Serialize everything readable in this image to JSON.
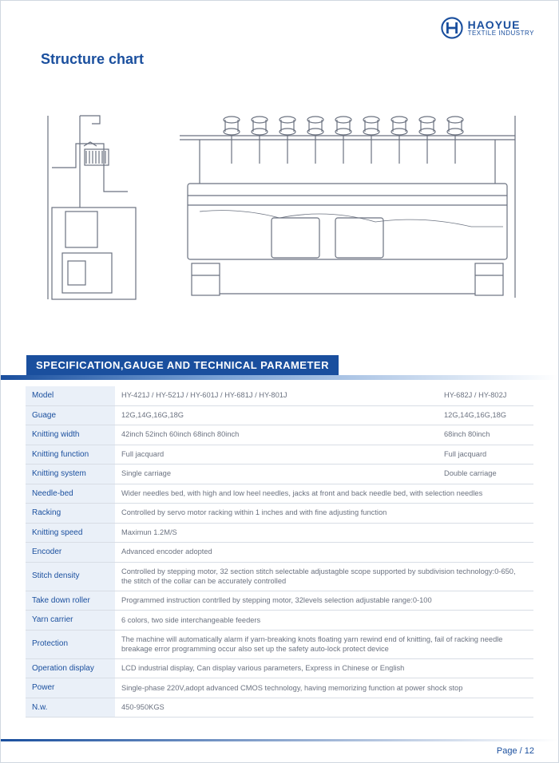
{
  "brand": {
    "name": "HAOYUE",
    "subline": "TEXTILE INDUSTRY"
  },
  "title": "Structure chart",
  "section_header": "SPECIFICATION,GAUGE AND TECHNICAL PARAMETER",
  "footer": {
    "label": "Page /",
    "num": "12"
  },
  "colors": {
    "brand": "#1a4f9e",
    "stroke": "#6b7280",
    "label_bg": "#eaf0f8",
    "border": "#d8dde5"
  },
  "specs": {
    "rows": [
      {
        "label": "Model",
        "c2": "HY-421J / HY-521J / HY-601J / HY-681J / HY-801J",
        "c3": "HY-682J / HY-802J"
      },
      {
        "label": "Guage",
        "c2": "12G,14G,16G,18G",
        "c3": "12G,14G,16G,18G"
      },
      {
        "label": "Knitting width",
        "c2": "42inch  52inch  60inch  68inch  80inch",
        "c3": "68inch   80inch"
      },
      {
        "label": "Knitting function",
        "c2": "Full jacquard",
        "c3": "Full jacquard"
      },
      {
        "label": "Knitting system",
        "c2": "Single carriage",
        "c3": "Double  carriage"
      },
      {
        "label": "Needle-bed",
        "span": "Wider needles bed, with high and low heel needles, jacks at front and back needle bed, with selection needles"
      },
      {
        "label": "Racking",
        "span": "Controlled by servo motor racking within 1 inches and with fine adjusting function"
      },
      {
        "label": "Knitting speed",
        "span": "Maximun 1.2M/S"
      },
      {
        "label": "Encoder",
        "span": "Advanced encoder adopted"
      },
      {
        "label": "Stitch density",
        "span": "Controlled by stepping motor, 32 section stitch selectable adjustagble scope supported by subdivision technology:0-650, the stitch of the collar can be accurately controlled"
      },
      {
        "label": "Take down roller",
        "span": "Programmed instruction contrlled by stepping motor, 32levels selection adjustable range:0-100"
      },
      {
        "label": "Yarn carrier",
        "span": "6 colors, two side interchangeable feeders"
      },
      {
        "label": "Protection",
        "span": "The machine will automatically alarm if yarn-breaking knots floating yarn rewind end of knitting, fail of racking needle breakage error programming occur also set up the safety auto-lock protect device"
      },
      {
        "label": "Operation display",
        "span": "LCD industrial display, Can display various parameters, Express in Chinese or English"
      },
      {
        "label": "Power",
        "span": "Single-phase 220V,adopt advanced CMOS technology, having memorizing function at power shock stop"
      },
      {
        "label": "N.w.",
        "span": "450-950KGS"
      }
    ]
  }
}
